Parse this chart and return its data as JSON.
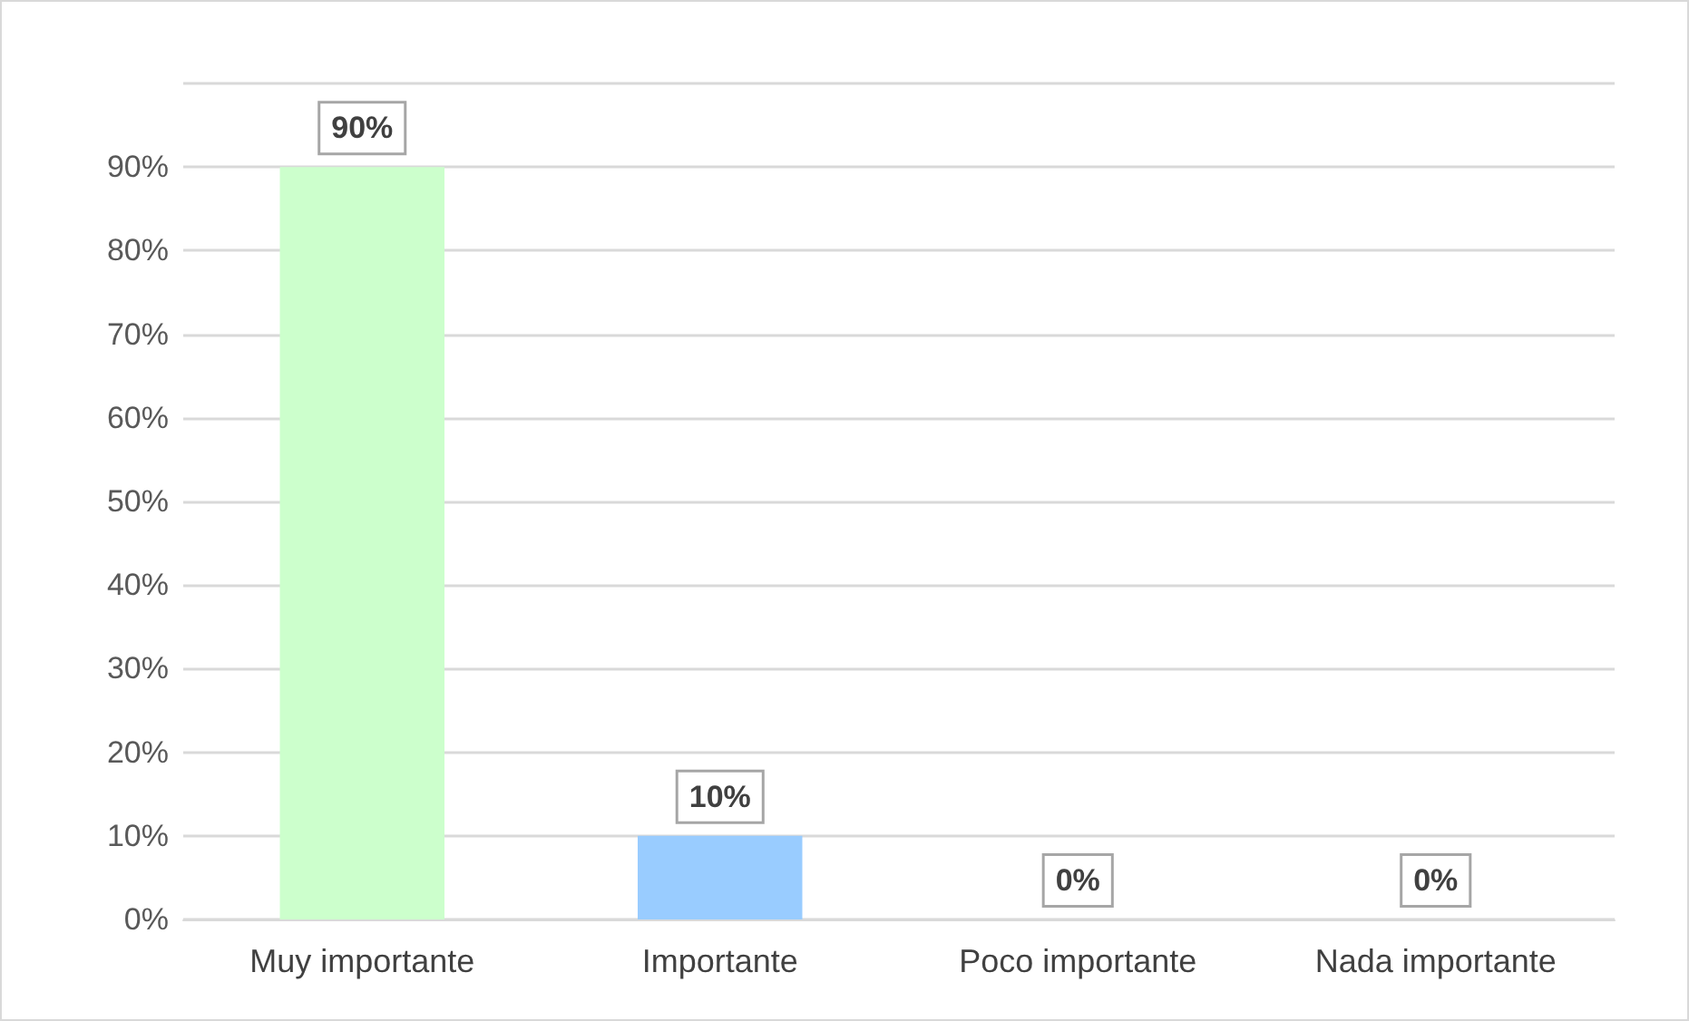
{
  "chart_data": {
    "type": "bar",
    "categories": [
      "Muy importante",
      "Importante",
      "Poco importante",
      "Nada importante"
    ],
    "values": [
      90,
      10,
      0,
      0
    ],
    "colors": [
      "#ccffcc",
      "#99ccff",
      "#bfbfbf",
      "#404040"
    ],
    "value_labels": [
      "90%",
      "10%",
      "0%",
      "0%"
    ],
    "ylim": [
      0,
      100
    ],
    "yticks": [
      {
        "value": 0,
        "label": "0%"
      },
      {
        "value": 10,
        "label": "10%"
      },
      {
        "value": 20,
        "label": "20%"
      },
      {
        "value": 30,
        "label": "30%"
      },
      {
        "value": 40,
        "label": "40%"
      },
      {
        "value": 50,
        "label": "50%"
      },
      {
        "value": 60,
        "label": "60%"
      },
      {
        "value": 70,
        "label": "70%"
      },
      {
        "value": 80,
        "label": "80%"
      },
      {
        "value": 90,
        "label": "90%"
      },
      {
        "value": 100,
        "label": null
      }
    ],
    "grid": true
  }
}
